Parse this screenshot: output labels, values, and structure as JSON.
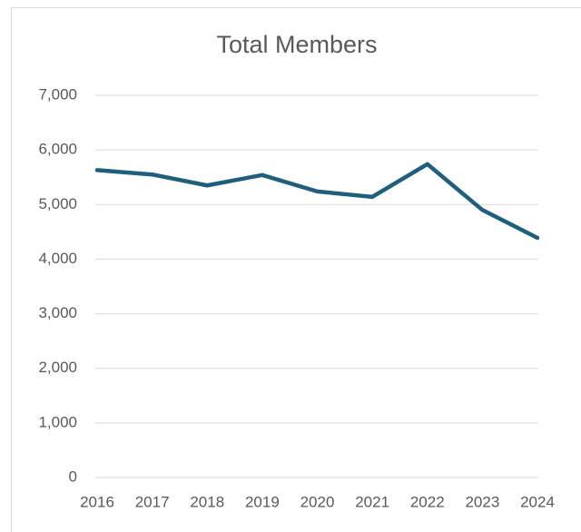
{
  "chart_data": {
    "type": "line",
    "title": "Total Members",
    "categories": [
      "2016",
      "2017",
      "2018",
      "2019",
      "2020",
      "2021",
      "2022",
      "2023",
      "2024"
    ],
    "series": [
      {
        "name": "Total Members",
        "color": "#1f5f7e",
        "values": [
          5630,
          5550,
          5350,
          5540,
          5240,
          5140,
          5740,
          4900,
          4390
        ]
      }
    ],
    "ylim": [
      0,
      7000
    ],
    "yticks": [
      0,
      {
        "value": 1000,
        "label": "1,000"
      },
      {
        "value": 2000,
        "label": "2,000"
      },
      {
        "value": 3000,
        "label": "3,000"
      },
      {
        "value": 4000,
        "label": "4,000"
      },
      {
        "value": 5000,
        "label": "5,000"
      },
      {
        "value": 6000,
        "label": "6,000"
      },
      {
        "value": 7000,
        "label": "7,000"
      }
    ],
    "grid": true
  }
}
